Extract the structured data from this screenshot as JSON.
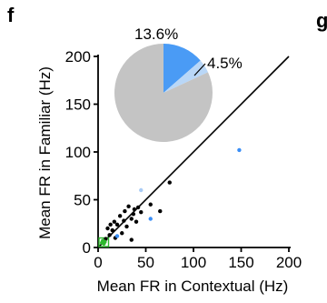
{
  "panels": {
    "f": "f",
    "g": "g"
  },
  "chart_data": {
    "type": "scatter",
    "title": "",
    "xlabel": "Mean FR in Contextual (Hz)",
    "ylabel": "Mean FR in Familiar (Hz)",
    "xlim": [
      0,
      200
    ],
    "ylim": [
      0,
      200
    ],
    "xticks": [
      0,
      50,
      100,
      150,
      200
    ],
    "yticks": [
      0,
      50,
      100,
      150,
      200
    ],
    "x_tick_labels": [
      "0",
      "50",
      "100",
      "150",
      "200"
    ],
    "y_tick_labels": [
      "0",
      "50",
      "100",
      "150",
      "200"
    ],
    "grid": false,
    "reference_line": "y = x",
    "series": [
      {
        "color": "#000000",
        "points": [
          {
            "x": 10,
            "y": 20
          },
          {
            "x": 13,
            "y": 24
          },
          {
            "x": 17,
            "y": 27
          },
          {
            "x": 20,
            "y": 24
          },
          {
            "x": 23,
            "y": 33
          },
          {
            "x": 27,
            "y": 28
          },
          {
            "x": 28,
            "y": 38
          },
          {
            "x": 30,
            "y": 22
          },
          {
            "x": 32,
            "y": 43
          },
          {
            "x": 35,
            "y": 30
          },
          {
            "x": 37,
            "y": 35
          },
          {
            "x": 38,
            "y": 40
          },
          {
            "x": 40,
            "y": 27
          },
          {
            "x": 42,
            "y": 42
          },
          {
            "x": 18,
            "y": 10
          },
          {
            "x": 35,
            "y": 8
          },
          {
            "x": 45,
            "y": 37
          },
          {
            "x": 55,
            "y": 45
          },
          {
            "x": 65,
            "y": 38
          },
          {
            "x": 75,
            "y": 68
          },
          {
            "x": 25,
            "y": 15
          },
          {
            "x": 12,
            "y": 13
          },
          {
            "x": 8,
            "y": 9
          },
          {
            "x": 15,
            "y": 18
          }
        ]
      },
      {
        "color": "#3a8ef6",
        "points": [
          {
            "x": 148,
            "y": 102
          },
          {
            "x": 55,
            "y": 30
          },
          {
            "x": 20,
            "y": 12
          }
        ]
      },
      {
        "color": "#a9ccf5",
        "points": [
          {
            "x": 45,
            "y": 60
          }
        ]
      },
      {
        "color": "#2db82d",
        "points": [
          {
            "x": 4,
            "y": 5
          },
          {
            "x": 6,
            "y": 4
          },
          {
            "x": 5,
            "y": 7
          },
          {
            "x": 7,
            "y": 6
          }
        ]
      }
    ],
    "inset_pie": {
      "type": "pie",
      "slices": [
        {
          "value": 13.6,
          "label": "13.6%",
          "color": "#4a9bf5"
        },
        {
          "value": 4.5,
          "label": "4.5%",
          "color": "#b9d7f7"
        },
        {
          "value": 81.9,
          "label": "",
          "color": "#c4c4c4"
        }
      ]
    }
  }
}
